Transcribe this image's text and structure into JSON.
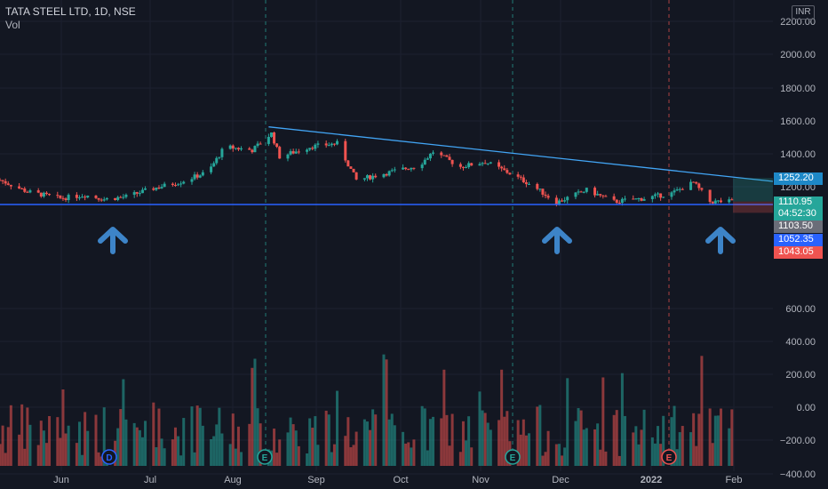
{
  "header": {
    "title": "TATA STEEL LTD, 1D, NSE",
    "volume_label": "Vol",
    "currency": "INR"
  },
  "colors": {
    "up": "#26a69a",
    "down": "#ef5350",
    "bg": "#131722",
    "trendline": "#2196f3",
    "support": "#2962ff",
    "arrow": "#3d84c8"
  },
  "axis": {
    "price_ticks": [
      "2200.00",
      "2000.00",
      "1800.00",
      "1600.00",
      "1400.00",
      "1200.00",
      "600.00",
      "400.00",
      "200.00",
      "0.00",
      "−200.00",
      "−400.00"
    ],
    "months": [
      "Jun",
      "Jul",
      "Aug",
      "Sep",
      "Oct",
      "Nov",
      "Dec",
      "2022",
      "Feb"
    ]
  },
  "price_labels": [
    {
      "name": "trendline-price",
      "text": "1252.20",
      "color": "#1e88c7"
    },
    {
      "name": "last-price",
      "text": "1110.95",
      "sub": "04:52:30",
      "color": "#26a69a"
    },
    {
      "name": "support-price",
      "text": "1103.50",
      "color": "#6a6d78"
    },
    {
      "name": "low-price-1",
      "text": "1052.35",
      "color": "#2962ff"
    },
    {
      "name": "low-price-2",
      "text": "1043.05",
      "color": "#ef5350"
    }
  ],
  "events": [
    {
      "letter": "D",
      "kind": "dividend"
    },
    {
      "letter": "E",
      "kind": "earnings"
    },
    {
      "letter": "E",
      "kind": "earnings"
    },
    {
      "letter": "E",
      "kind": "earnings"
    }
  ],
  "chart_data": {
    "type": "candlestick",
    "title": "TATA STEEL LTD, 1D, NSE",
    "x_range": [
      "2021-05-10",
      "2022-02-03"
    ],
    "y_axis_ticks": [
      2200,
      2000,
      1800,
      1600,
      1400,
      1200,
      600,
      400,
      200,
      0,
      -200,
      -400
    ],
    "trendline": {
      "from": [
        "2021-08-16",
        1560
      ],
      "to": [
        "2022-02-04",
        1220
      ]
    },
    "support_level": 1103.5,
    "last_close": 1110.95,
    "price_path": [
      [
        "2021-05-10",
        1240
      ],
      [
        "2021-05-20",
        1170
      ],
      [
        "2021-06-01",
        1130
      ],
      [
        "2021-06-10",
        1150
      ],
      [
        "2021-06-17",
        1125
      ],
      [
        "2021-06-25",
        1140
      ],
      [
        "2021-07-05",
        1190
      ],
      [
        "2021-07-15",
        1230
      ],
      [
        "2021-07-25",
        1290
      ],
      [
        "2021-07-31",
        1440
      ],
      [
        "2021-08-10",
        1420
      ],
      [
        "2021-08-17",
        1520
      ],
      [
        "2021-08-20",
        1380
      ],
      [
        "2021-08-31",
        1440
      ],
      [
        "2021-09-10",
        1460
      ],
      [
        "2021-09-17",
        1240
      ],
      [
        "2021-09-30",
        1290
      ],
      [
        "2021-10-10",
        1330
      ],
      [
        "2021-10-15",
        1410
      ],
      [
        "2021-10-25",
        1320
      ],
      [
        "2021-11-03",
        1350
      ],
      [
        "2021-11-12",
        1280
      ],
      [
        "2021-11-20",
        1210
      ],
      [
        "2021-11-29",
        1105
      ],
      [
        "2021-12-10",
        1180
      ],
      [
        "2021-12-20",
        1110
      ],
      [
        "2021-12-31",
        1130
      ],
      [
        "2022-01-10",
        1160
      ],
      [
        "2022-01-18",
        1225
      ],
      [
        "2022-01-24",
        1110
      ],
      [
        "2022-02-01",
        1111
      ]
    ]
  }
}
